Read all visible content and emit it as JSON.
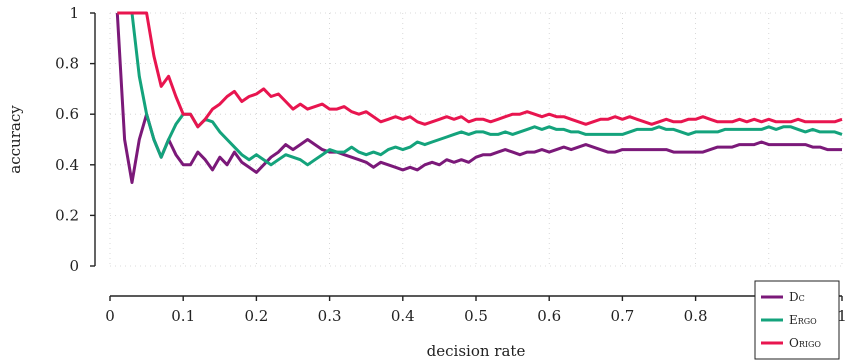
{
  "chart_data": {
    "type": "line",
    "xlabel": "decision rate",
    "ylabel": "accuracy",
    "xlim": [
      0,
      1
    ],
    "ylim": [
      0,
      1
    ],
    "xticks": [
      "0",
      "0.1",
      "0.2",
      "0.3",
      "0.4",
      "0.5",
      "0.6",
      "0.7",
      "0.8",
      "0.9",
      "1"
    ],
    "yticks": [
      "0",
      "0.2",
      "0.4",
      "0.6",
      "0.8",
      "1"
    ],
    "grid": true,
    "legend_position": "bottom-right",
    "x": [
      0.01,
      0.02,
      0.03,
      0.04,
      0.05,
      0.06,
      0.07,
      0.08,
      0.09,
      0.1,
      0.11,
      0.12,
      0.13,
      0.14,
      0.15,
      0.16,
      0.17,
      0.18,
      0.19,
      0.2,
      0.21,
      0.22,
      0.23,
      0.24,
      0.25,
      0.26,
      0.27,
      0.28,
      0.29,
      0.3,
      0.31,
      0.32,
      0.33,
      0.34,
      0.35,
      0.36,
      0.37,
      0.38,
      0.39,
      0.4,
      0.41,
      0.42,
      0.43,
      0.44,
      0.45,
      0.46,
      0.47,
      0.48,
      0.49,
      0.5,
      0.51,
      0.52,
      0.53,
      0.54,
      0.55,
      0.56,
      0.57,
      0.58,
      0.59,
      0.6,
      0.61,
      0.62,
      0.63,
      0.64,
      0.65,
      0.66,
      0.67,
      0.68,
      0.69,
      0.7,
      0.71,
      0.72,
      0.73,
      0.74,
      0.75,
      0.76,
      0.77,
      0.78,
      0.79,
      0.8,
      0.81,
      0.82,
      0.83,
      0.84,
      0.85,
      0.86,
      0.87,
      0.88,
      0.89,
      0.9,
      0.91,
      0.92,
      0.93,
      0.94,
      0.95,
      0.96,
      0.97,
      0.98,
      0.99,
      1.0
    ],
    "series": [
      {
        "name": "Dc",
        "color": "#7b1979",
        "values": [
          1.0,
          0.5,
          0.33,
          0.5,
          0.6,
          0.5,
          0.43,
          0.5,
          0.44,
          0.4,
          0.4,
          0.45,
          0.42,
          0.38,
          0.43,
          0.4,
          0.45,
          0.41,
          0.39,
          0.37,
          0.4,
          0.43,
          0.45,
          0.48,
          0.46,
          0.48,
          0.5,
          0.48,
          0.46,
          0.45,
          0.45,
          0.44,
          0.43,
          0.42,
          0.41,
          0.39,
          0.41,
          0.4,
          0.39,
          0.38,
          0.39,
          0.38,
          0.4,
          0.41,
          0.4,
          0.42,
          0.41,
          0.42,
          0.41,
          0.43,
          0.44,
          0.44,
          0.45,
          0.46,
          0.45,
          0.44,
          0.45,
          0.45,
          0.46,
          0.45,
          0.46,
          0.47,
          0.46,
          0.47,
          0.48,
          0.47,
          0.46,
          0.45,
          0.45,
          0.46,
          0.46,
          0.46,
          0.46,
          0.46,
          0.46,
          0.46,
          0.45,
          0.45,
          0.45,
          0.45,
          0.45,
          0.46,
          0.47,
          0.47,
          0.47,
          0.48,
          0.48,
          0.48,
          0.49,
          0.48,
          0.48,
          0.48,
          0.48,
          0.48,
          0.48,
          0.47,
          0.47,
          0.46,
          0.46,
          0.46
        ]
      },
      {
        "name": "Ergo",
        "color": "#14a37c",
        "values": [
          1.0,
          1.0,
          1.0,
          0.75,
          0.6,
          0.5,
          0.43,
          0.5,
          0.56,
          0.6,
          0.6,
          0.55,
          0.58,
          0.57,
          0.53,
          0.5,
          0.47,
          0.44,
          0.42,
          0.44,
          0.42,
          0.4,
          0.42,
          0.44,
          0.43,
          0.42,
          0.4,
          0.42,
          0.44,
          0.46,
          0.45,
          0.45,
          0.47,
          0.45,
          0.44,
          0.45,
          0.44,
          0.46,
          0.47,
          0.46,
          0.47,
          0.49,
          0.48,
          0.49,
          0.5,
          0.51,
          0.52,
          0.53,
          0.52,
          0.53,
          0.53,
          0.52,
          0.52,
          0.53,
          0.52,
          0.53,
          0.54,
          0.55,
          0.54,
          0.55,
          0.54,
          0.54,
          0.53,
          0.53,
          0.52,
          0.52,
          0.52,
          0.52,
          0.52,
          0.52,
          0.53,
          0.54,
          0.54,
          0.54,
          0.55,
          0.54,
          0.54,
          0.53,
          0.52,
          0.53,
          0.53,
          0.53,
          0.53,
          0.54,
          0.54,
          0.54,
          0.54,
          0.54,
          0.54,
          0.55,
          0.54,
          0.55,
          0.55,
          0.54,
          0.53,
          0.54,
          0.53,
          0.53,
          0.53,
          0.52
        ]
      },
      {
        "name": "Origo",
        "color": "#e8154f",
        "values": [
          1.0,
          1.0,
          1.0,
          1.0,
          1.0,
          0.83,
          0.71,
          0.75,
          0.67,
          0.6,
          0.6,
          0.55,
          0.58,
          0.62,
          0.64,
          0.67,
          0.69,
          0.65,
          0.67,
          0.68,
          0.7,
          0.67,
          0.68,
          0.65,
          0.62,
          0.64,
          0.62,
          0.63,
          0.64,
          0.62,
          0.62,
          0.63,
          0.61,
          0.6,
          0.61,
          0.59,
          0.57,
          0.58,
          0.59,
          0.58,
          0.59,
          0.57,
          0.56,
          0.57,
          0.58,
          0.59,
          0.58,
          0.59,
          0.57,
          0.58,
          0.58,
          0.57,
          0.58,
          0.59,
          0.6,
          0.6,
          0.61,
          0.6,
          0.59,
          0.6,
          0.59,
          0.59,
          0.58,
          0.57,
          0.56,
          0.57,
          0.58,
          0.58,
          0.59,
          0.58,
          0.59,
          0.58,
          0.57,
          0.56,
          0.57,
          0.58,
          0.57,
          0.57,
          0.58,
          0.58,
          0.59,
          0.58,
          0.57,
          0.57,
          0.57,
          0.58,
          0.57,
          0.58,
          0.57,
          0.58,
          0.57,
          0.57,
          0.57,
          0.58,
          0.57,
          0.57,
          0.57,
          0.57,
          0.57,
          0.58
        ]
      }
    ]
  }
}
